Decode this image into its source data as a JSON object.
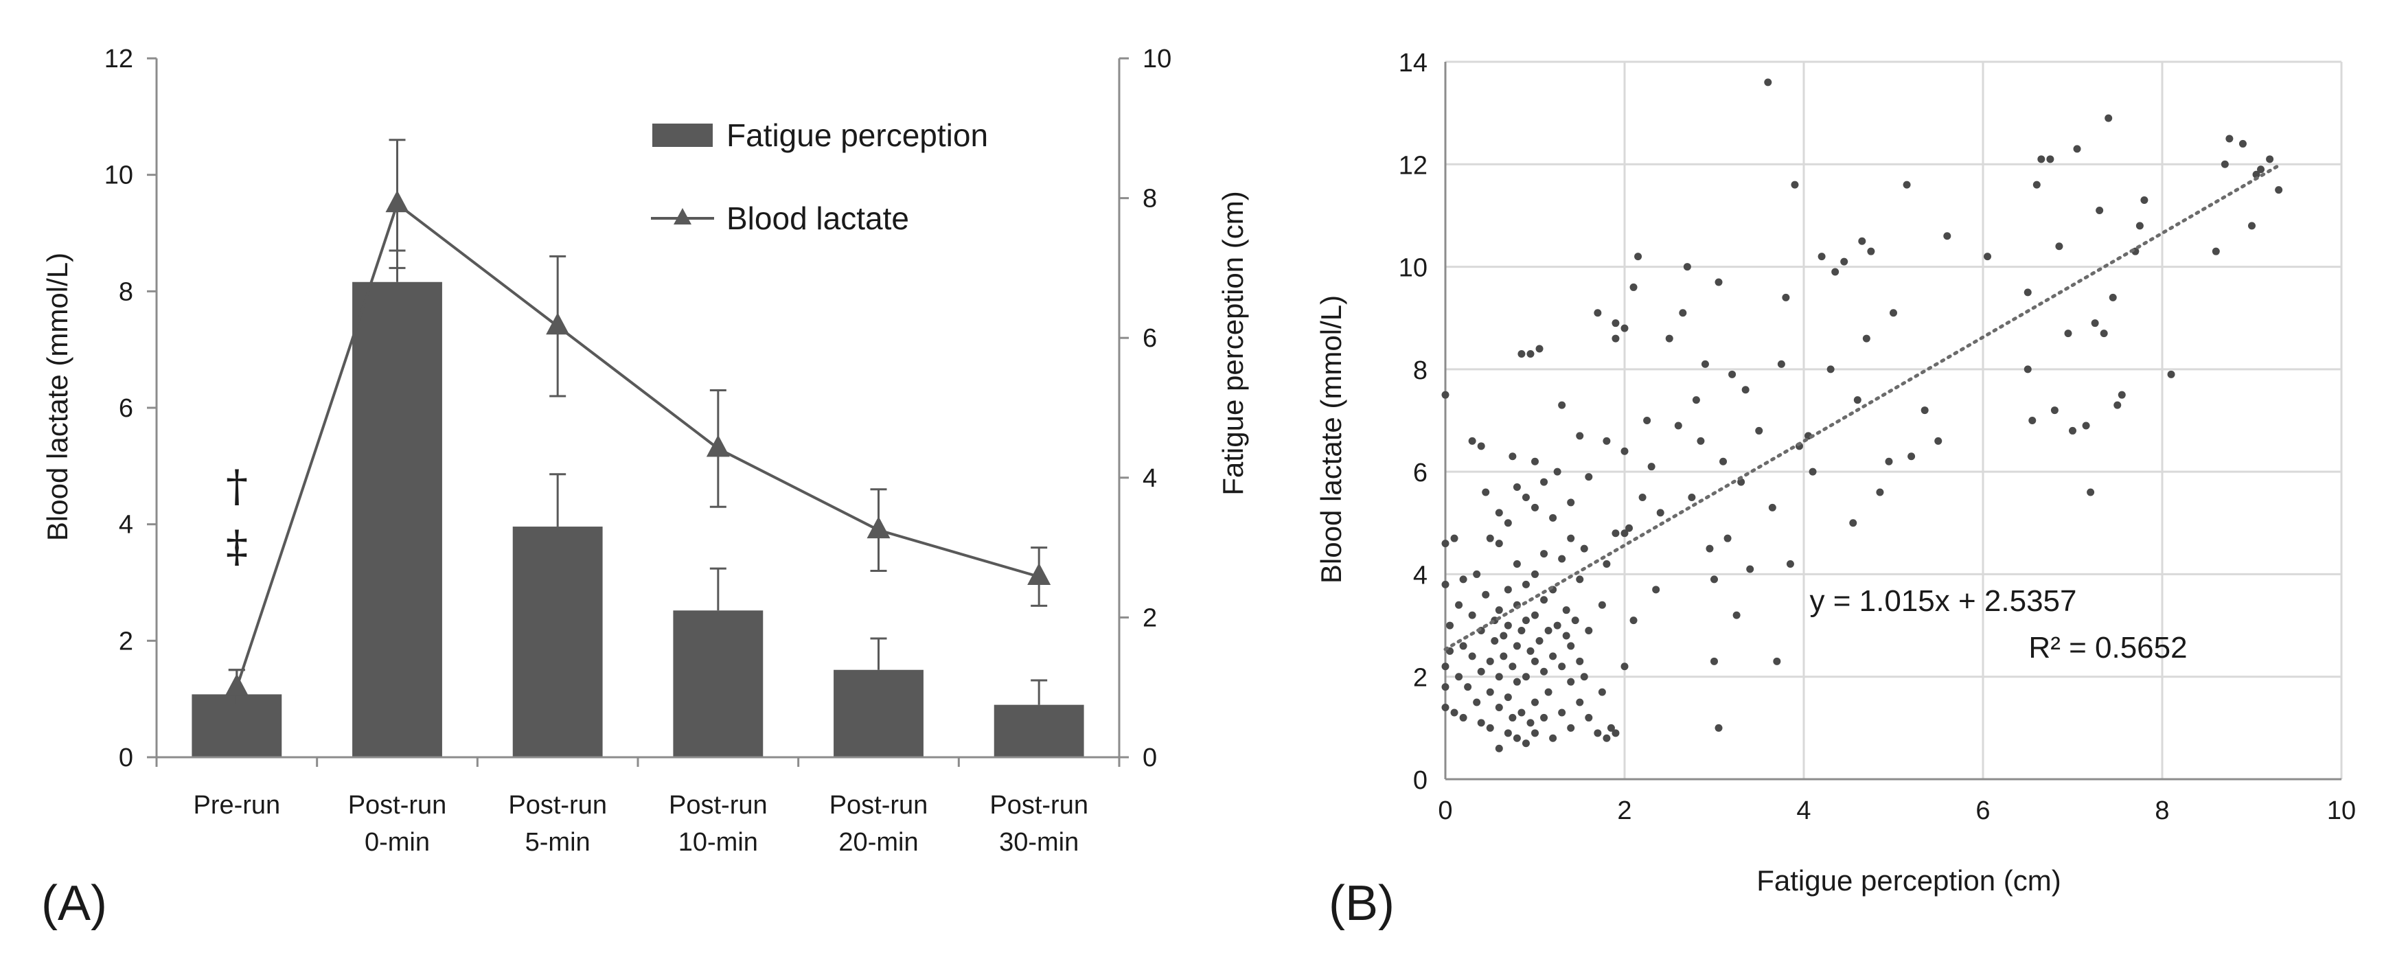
{
  "chart_data": [
    {
      "type": "bar",
      "panel": "(A)",
      "categories": [
        "Pre-run",
        "Post-run 0-min",
        "Post-run 5-min",
        "Post-run 10-min",
        "Post-run 20-min",
        "Post-run 30-min"
      ],
      "category_lines": [
        [
          "Pre-run"
        ],
        [
          "Post-run",
          "0-min"
        ],
        [
          "Post-run",
          "5-min"
        ],
        [
          "Post-run",
          "10-min"
        ],
        [
          "Post-run",
          "20-min"
        ],
        [
          "Post-run",
          "30-min"
        ]
      ],
      "ylabel_left": "Blood lactate (mmol/L)",
      "ylabel_right": "Fatigue perception (cm)",
      "ylim_left": [
        0,
        12
      ],
      "ylim_right": [
        0,
        10
      ],
      "yticks_left": [
        "0",
        "2",
        "4",
        "6",
        "8",
        "10",
        "12"
      ],
      "yticks_right": [
        "0",
        "2",
        "4",
        "6",
        "8",
        "10"
      ],
      "annotation_symbols": [
        "†",
        "‡"
      ],
      "series": [
        {
          "name": "Fatigue perception",
          "kind": "bar",
          "axis": "right",
          "values": [
            0.9,
            6.8,
            3.3,
            2.1,
            1.25,
            0.75
          ],
          "error": [
            0.35,
            0.45,
            0.75,
            0.6,
            0.45,
            0.35
          ]
        },
        {
          "name": "Blood lactate",
          "kind": "line",
          "marker": "triangle",
          "axis": "left",
          "values": [
            1.2,
            9.5,
            7.4,
            5.3,
            3.9,
            3.1
          ],
          "error": [
            0.3,
            1.1,
            1.2,
            1.0,
            0.7,
            0.5
          ]
        }
      ],
      "colors": {
        "bar": "#595959",
        "line": "#595959",
        "axis": "#8c8c8c",
        "grid": "#e5e5e5"
      }
    },
    {
      "type": "scatter",
      "panel": "(B)",
      "xlabel": "Fatigue perception (cm)",
      "ylabel": "Blood lactate (mmol/L)",
      "xlim": [
        0,
        10
      ],
      "ylim": [
        0,
        14
      ],
      "xticks": [
        "0",
        "2",
        "4",
        "6",
        "8",
        "10"
      ],
      "yticks": [
        "0",
        "2",
        "4",
        "6",
        "8",
        "10",
        "12",
        "14"
      ],
      "grid": true,
      "trendline": {
        "slope": 1.015,
        "intercept": 2.5357,
        "x_range": [
          0,
          9.3
        ],
        "style": "dotted"
      },
      "equation_label": "y = 1.015x  + 2.5357",
      "r2_label": "R² = 0.5652",
      "points": [
        [
          0.0,
          1.4
        ],
        [
          0.0,
          1.8
        ],
        [
          0.0,
          2.2
        ],
        [
          0.0,
          3.8
        ],
        [
          0.0,
          4.6
        ],
        [
          0.0,
          7.5
        ],
        [
          0.05,
          2.5
        ],
        [
          0.05,
          3.0
        ],
        [
          0.1,
          1.3
        ],
        [
          0.1,
          4.7
        ],
        [
          0.15,
          2.0
        ],
        [
          0.15,
          3.4
        ],
        [
          0.2,
          1.2
        ],
        [
          0.2,
          2.6
        ],
        [
          0.2,
          3.9
        ],
        [
          0.25,
          1.8
        ],
        [
          0.3,
          2.4
        ],
        [
          0.3,
          3.2
        ],
        [
          0.3,
          6.6
        ],
        [
          0.35,
          1.5
        ],
        [
          0.35,
          4.0
        ],
        [
          0.4,
          1.1
        ],
        [
          0.4,
          2.1
        ],
        [
          0.4,
          2.9
        ],
        [
          0.4,
          6.5
        ],
        [
          0.45,
          3.6
        ],
        [
          0.45,
          5.6
        ],
        [
          0.5,
          1.0
        ],
        [
          0.5,
          1.7
        ],
        [
          0.5,
          2.3
        ],
        [
          0.5,
          4.7
        ],
        [
          0.55,
          2.7
        ],
        [
          0.55,
          3.1
        ],
        [
          0.6,
          0.6
        ],
        [
          0.6,
          1.4
        ],
        [
          0.6,
          2.0
        ],
        [
          0.6,
          3.3
        ],
        [
          0.6,
          4.6
        ],
        [
          0.6,
          5.2
        ],
        [
          0.65,
          2.4
        ],
        [
          0.65,
          2.8
        ],
        [
          0.7,
          0.9
        ],
        [
          0.7,
          1.6
        ],
        [
          0.7,
          3.0
        ],
        [
          0.7,
          3.7
        ],
        [
          0.7,
          5.0
        ],
        [
          0.75,
          1.2
        ],
        [
          0.75,
          2.2
        ],
        [
          0.75,
          6.3
        ],
        [
          0.8,
          0.8
        ],
        [
          0.8,
          1.9
        ],
        [
          0.8,
          2.6
        ],
        [
          0.8,
          3.4
        ],
        [
          0.8,
          4.2
        ],
        [
          0.8,
          5.7
        ],
        [
          0.85,
          1.3
        ],
        [
          0.85,
          2.9
        ],
        [
          0.85,
          8.3
        ],
        [
          0.9,
          0.7
        ],
        [
          0.9,
          2.0
        ],
        [
          0.9,
          3.1
        ],
        [
          0.9,
          3.8
        ],
        [
          0.9,
          5.5
        ],
        [
          0.95,
          1.1
        ],
        [
          0.95,
          2.5
        ],
        [
          0.95,
          8.3
        ],
        [
          1.0,
          0.9
        ],
        [
          1.0,
          1.5
        ],
        [
          1.0,
          2.3
        ],
        [
          1.0,
          3.2
        ],
        [
          1.0,
          4.0
        ],
        [
          1.0,
          5.3
        ],
        [
          1.0,
          6.2
        ],
        [
          1.05,
          2.7
        ],
        [
          1.05,
          8.4
        ],
        [
          1.1,
          1.2
        ],
        [
          1.1,
          2.1
        ],
        [
          1.1,
          3.5
        ],
        [
          1.1,
          4.4
        ],
        [
          1.1,
          5.8
        ],
        [
          1.15,
          1.7
        ],
        [
          1.15,
          2.9
        ],
        [
          1.2,
          0.8
        ],
        [
          1.2,
          2.4
        ],
        [
          1.2,
          3.7
        ],
        [
          1.2,
          5.1
        ],
        [
          1.25,
          3.0
        ],
        [
          1.25,
          6.0
        ],
        [
          1.3,
          1.3
        ],
        [
          1.3,
          2.2
        ],
        [
          1.3,
          4.3
        ],
        [
          1.3,
          7.3
        ],
        [
          1.35,
          2.8
        ],
        [
          1.35,
          3.3
        ],
        [
          1.4,
          1.0
        ],
        [
          1.4,
          1.9
        ],
        [
          1.4,
          2.6
        ],
        [
          1.4,
          4.7
        ],
        [
          1.4,
          5.4
        ],
        [
          1.45,
          3.1
        ],
        [
          1.5,
          1.5
        ],
        [
          1.5,
          2.3
        ],
        [
          1.5,
          3.9
        ],
        [
          1.5,
          6.7
        ],
        [
          1.55,
          2.0
        ],
        [
          1.55,
          4.5
        ],
        [
          1.6,
          1.2
        ],
        [
          1.6,
          2.9
        ],
        [
          1.6,
          5.9
        ],
        [
          1.7,
          0.9
        ],
        [
          1.7,
          9.1
        ],
        [
          1.75,
          1.7
        ],
        [
          1.75,
          3.4
        ],
        [
          1.8,
          0.8
        ],
        [
          1.8,
          4.2
        ],
        [
          1.8,
          6.6
        ],
        [
          1.85,
          1.0
        ],
        [
          1.9,
          0.9
        ],
        [
          1.9,
          4.8
        ],
        [
          1.9,
          8.6
        ],
        [
          1.9,
          8.9
        ],
        [
          2.0,
          2.2
        ],
        [
          2.0,
          4.8
        ],
        [
          2.0,
          6.4
        ],
        [
          2.0,
          8.8
        ],
        [
          2.05,
          4.9
        ],
        [
          2.1,
          3.1
        ],
        [
          2.1,
          9.6
        ],
        [
          2.15,
          10.2
        ],
        [
          2.2,
          5.5
        ],
        [
          2.25,
          7.0
        ],
        [
          2.3,
          6.1
        ],
        [
          2.35,
          3.7
        ],
        [
          2.4,
          5.2
        ],
        [
          2.5,
          8.6
        ],
        [
          2.6,
          6.9
        ],
        [
          2.65,
          9.1
        ],
        [
          2.7,
          10.0
        ],
        [
          2.75,
          5.5
        ],
        [
          2.8,
          7.4
        ],
        [
          2.85,
          6.6
        ],
        [
          2.9,
          8.1
        ],
        [
          2.95,
          4.5
        ],
        [
          3.0,
          2.3
        ],
        [
          3.0,
          3.9
        ],
        [
          3.05,
          1.0
        ],
        [
          3.05,
          9.7
        ],
        [
          3.1,
          6.2
        ],
        [
          3.15,
          4.7
        ],
        [
          3.2,
          7.9
        ],
        [
          3.25,
          3.2
        ],
        [
          3.3,
          5.8
        ],
        [
          3.35,
          7.6
        ],
        [
          3.4,
          4.1
        ],
        [
          3.5,
          6.8
        ],
        [
          3.6,
          13.6
        ],
        [
          3.65,
          5.3
        ],
        [
          3.7,
          2.3
        ],
        [
          3.75,
          8.1
        ],
        [
          3.8,
          9.4
        ],
        [
          3.85,
          4.2
        ],
        [
          3.9,
          11.6
        ],
        [
          3.95,
          6.5
        ],
        [
          4.05,
          6.7
        ],
        [
          4.1,
          6.0
        ],
        [
          4.2,
          10.2
        ],
        [
          4.3,
          8.0
        ],
        [
          4.35,
          9.9
        ],
        [
          4.45,
          10.1
        ],
        [
          4.55,
          5.0
        ],
        [
          4.6,
          7.4
        ],
        [
          4.65,
          10.5
        ],
        [
          4.7,
          8.6
        ],
        [
          4.75,
          10.3
        ],
        [
          4.85,
          5.6
        ],
        [
          4.95,
          6.2
        ],
        [
          5.0,
          9.1
        ],
        [
          5.15,
          11.6
        ],
        [
          5.2,
          6.3
        ],
        [
          5.35,
          7.2
        ],
        [
          5.5,
          6.6
        ],
        [
          5.6,
          10.6
        ],
        [
          6.05,
          10.2
        ],
        [
          6.5,
          9.5
        ],
        [
          6.5,
          8.0
        ],
        [
          6.55,
          7.0
        ],
        [
          6.6,
          11.6
        ],
        [
          6.65,
          12.1
        ],
        [
          6.75,
          12.1
        ],
        [
          6.8,
          7.2
        ],
        [
          6.85,
          10.4
        ],
        [
          6.95,
          8.7
        ],
        [
          7.0,
          6.8
        ],
        [
          7.05,
          12.3
        ],
        [
          7.15,
          6.9
        ],
        [
          7.2,
          5.6
        ],
        [
          7.25,
          8.9
        ],
        [
          7.3,
          11.1
        ],
        [
          7.35,
          8.7
        ],
        [
          7.4,
          12.9
        ],
        [
          7.45,
          9.4
        ],
        [
          7.5,
          7.3
        ],
        [
          7.55,
          7.5
        ],
        [
          7.7,
          10.3
        ],
        [
          7.75,
          10.8
        ],
        [
          7.8,
          11.3
        ],
        [
          8.1,
          7.9
        ],
        [
          8.6,
          10.3
        ],
        [
          8.7,
          12.0
        ],
        [
          8.75,
          12.5
        ],
        [
          8.9,
          12.4
        ],
        [
          9.0,
          10.8
        ],
        [
          9.05,
          11.8
        ],
        [
          9.1,
          11.9
        ],
        [
          9.2,
          12.1
        ],
        [
          9.3,
          11.5
        ]
      ],
      "colors": {
        "point": "#4a4a4a",
        "trendline": "#6b6b6b",
        "axis": "#8c8c8c",
        "grid": "#d9d9d9"
      }
    }
  ]
}
